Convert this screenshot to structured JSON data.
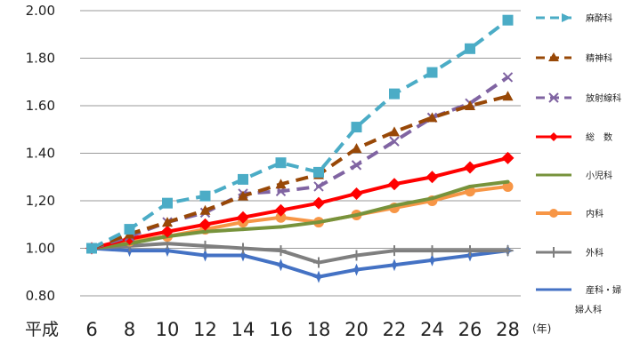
{
  "chart_data": {
    "type": "line",
    "era_label": "平成",
    "year_unit": "(年)",
    "x": [
      6,
      8,
      10,
      12,
      14,
      16,
      18,
      20,
      22,
      24,
      26,
      28
    ],
    "x_tick_labels": [
      "6",
      "8",
      "10",
      "12",
      "14",
      "16",
      "18",
      "20",
      "22",
      "24",
      "26",
      "28"
    ],
    "ylim": [
      0.8,
      2.0
    ],
    "y_tick_labels": [
      "0.80",
      "1.00",
      "1,20",
      "1.40",
      "1.60",
      "1.80",
      "2.00"
    ],
    "grid": true,
    "legend_position": "right",
    "series": [
      {
        "name": "麻酔科",
        "color": "#4bacc6",
        "dash": "dashed",
        "marker": "square",
        "values": [
          1.0,
          1.08,
          1.19,
          1.22,
          1.29,
          1.36,
          1.32,
          1.51,
          1.65,
          1.74,
          1.84,
          1.96
        ]
      },
      {
        "name": "精神科",
        "color": "#984807",
        "dash": "dashed",
        "marker": "triangle",
        "values": [
          1.0,
          1.06,
          1.11,
          1.16,
          1.22,
          1.27,
          1.31,
          1.42,
          1.49,
          1.55,
          1.6,
          1.64
        ]
      },
      {
        "name": "放射線科",
        "color": "#8064a2",
        "dash": "dashed",
        "marker": "x",
        "values": [
          1.0,
          1.05,
          1.11,
          1.15,
          1.23,
          1.24,
          1.26,
          1.35,
          1.45,
          1.55,
          1.61,
          1.72
        ]
      },
      {
        "name": "総　数",
        "color": "#ff0000",
        "dash": "solid",
        "marker": "diamond",
        "values": [
          1.0,
          1.04,
          1.07,
          1.1,
          1.13,
          1.16,
          1.19,
          1.23,
          1.27,
          1.3,
          1.34,
          1.38
        ]
      },
      {
        "name": "小児科",
        "color": "#77933c",
        "dash": "solid",
        "marker": "none",
        "values": [
          1.0,
          1.02,
          1.05,
          1.07,
          1.08,
          1.09,
          1.11,
          1.14,
          1.18,
          1.21,
          1.26,
          1.28
        ]
      },
      {
        "name": "内科",
        "color": "#f79646",
        "dash": "solid",
        "marker": "circle",
        "values": [
          1.0,
          1.03,
          1.05,
          1.08,
          1.11,
          1.13,
          1.11,
          1.14,
          1.17,
          1.2,
          1.24,
          1.26
        ]
      },
      {
        "name": "外科",
        "color": "#7f7f7f",
        "dash": "solid",
        "marker": "cross",
        "values": [
          1.0,
          1.01,
          1.02,
          1.01,
          1.0,
          0.99,
          0.94,
          0.97,
          0.99,
          0.99,
          0.99,
          0.99
        ]
      },
      {
        "name": "産科・婦人科",
        "color": "#4472c4",
        "dash": "solid",
        "marker": "star",
        "values": [
          1.0,
          0.99,
          0.99,
          0.97,
          0.97,
          0.93,
          0.88,
          0.91,
          0.93,
          0.95,
          0.97,
          0.99
        ]
      }
    ]
  },
  "legend_labels": {
    "s0": "麻酔科",
    "s1": "精神科",
    "s2": "放射線科",
    "s3": "総　数",
    "s4": "小児科",
    "s5": "内科",
    "s6": "外科",
    "s7_line1": "産科・婦",
    "s7_line2": "婦人科"
  }
}
